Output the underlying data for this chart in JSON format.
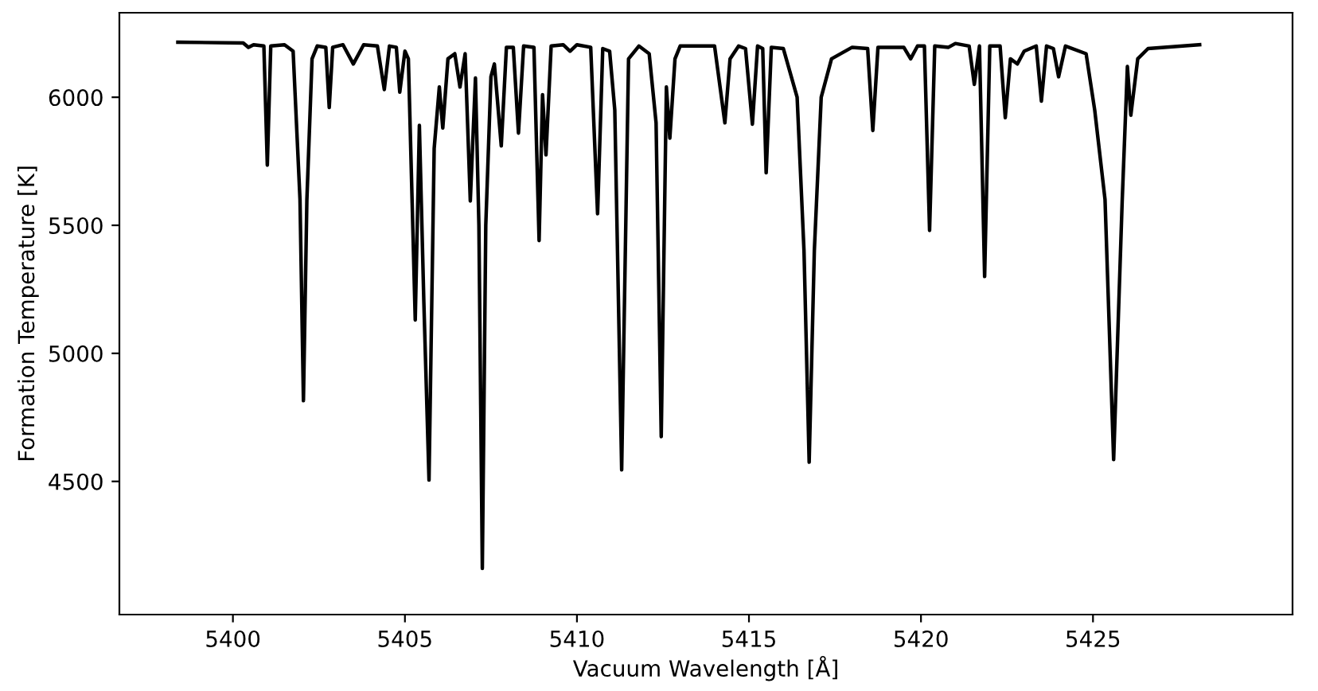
{
  "chart_data": {
    "type": "line",
    "xlabel": "Vacuum Wavelength [Å]",
    "ylabel": "Formation Temperature [K]",
    "xlim": [
      5396.7,
      5430.8
    ],
    "ylim": [
      3980,
      6330
    ],
    "xticks": [
      5400,
      5405,
      5410,
      5415,
      5420,
      5425
    ],
    "yticks": [
      4500,
      5000,
      5500,
      6000
    ],
    "grid": false,
    "legend": false,
    "marker": "none",
    "line_style": "solid",
    "series": [
      {
        "color": "#000000",
        "x": [
          5398.4,
          5400.3,
          5400.45,
          5400.6,
          5400.9,
          5401.0,
          5401.1,
          5401.5,
          5401.75,
          5401.95,
          5402.05,
          5402.15,
          5402.3,
          5402.45,
          5402.7,
          5402.8,
          5402.9,
          5403.2,
          5403.5,
          5403.8,
          5404.2,
          5404.4,
          5404.55,
          5404.75,
          5404.85,
          5405.0,
          5405.1,
          5405.3,
          5405.42,
          5405.55,
          5405.7,
          5405.85,
          5406.0,
          5406.1,
          5406.25,
          5406.45,
          5406.6,
          5406.75,
          5406.9,
          5407.05,
          5407.15,
          5407.25,
          5407.35,
          5407.5,
          5407.6,
          5407.8,
          5407.95,
          5408.15,
          5408.3,
          5408.45,
          5408.75,
          5408.9,
          5409.0,
          5409.1,
          5409.25,
          5409.6,
          5409.8,
          5410.0,
          5410.4,
          5410.6,
          5410.75,
          5410.95,
          5411.1,
          5411.3,
          5411.5,
          5411.8,
          5412.1,
          5412.3,
          5412.45,
          5412.6,
          5412.7,
          5412.85,
          5413.0,
          5413.3,
          5414.0,
          5414.3,
          5414.45,
          5414.7,
          5414.9,
          5415.1,
          5415.25,
          5415.4,
          5415.5,
          5415.65,
          5416.0,
          5416.4,
          5416.6,
          5416.75,
          5416.9,
          5417.1,
          5417.4,
          5418.0,
          5418.45,
          5418.6,
          5418.75,
          5419.5,
          5419.7,
          5419.9,
          5420.1,
          5420.25,
          5420.4,
          5420.8,
          5421.0,
          5421.4,
          5421.55,
          5421.7,
          5421.85,
          5422.0,
          5422.3,
          5422.45,
          5422.6,
          5422.8,
          5423.0,
          5423.35,
          5423.5,
          5423.65,
          5423.85,
          5424.0,
          5424.2,
          5424.8,
          5425.05,
          5425.35,
          5425.6,
          5425.85,
          5426.0,
          5426.1,
          5426.3,
          5426.6,
          5428.1
        ],
        "values": [
          6215,
          6212,
          6195,
          6205,
          6200,
          5735,
          6200,
          6205,
          6180,
          5600,
          4815,
          5600,
          6150,
          6200,
          6195,
          5960,
          6195,
          6205,
          6130,
          6205,
          6200,
          6030,
          6200,
          6195,
          6020,
          6180,
          6150,
          5130,
          5890,
          5200,
          4505,
          5800,
          6040,
          5880,
          6150,
          6170,
          6040,
          6170,
          5595,
          6075,
          5500,
          4160,
          5500,
          6080,
          6130,
          5810,
          6195,
          6195,
          5860,
          6200,
          6195,
          5440,
          6010,
          5775,
          6200,
          6205,
          6180,
          6205,
          6195,
          5545,
          6190,
          6180,
          5950,
          4545,
          6150,
          6200,
          6170,
          5900,
          4675,
          6040,
          5840,
          6150,
          6200,
          6200,
          6200,
          5900,
          6150,
          6200,
          6190,
          5895,
          6200,
          6190,
          5705,
          6195,
          6190,
          6000,
          5400,
          4575,
          5400,
          6000,
          6150,
          6195,
          6190,
          5870,
          6195,
          6195,
          6150,
          6200,
          6200,
          5480,
          6200,
          6195,
          6210,
          6200,
          6050,
          6200,
          5300,
          6200,
          6200,
          5920,
          6150,
          6130,
          6180,
          6200,
          5985,
          6200,
          6190,
          6080,
          6200,
          6170,
          5950,
          5600,
          4585,
          5600,
          6120,
          5930,
          6150,
          6190,
          6205
        ]
      }
    ]
  }
}
